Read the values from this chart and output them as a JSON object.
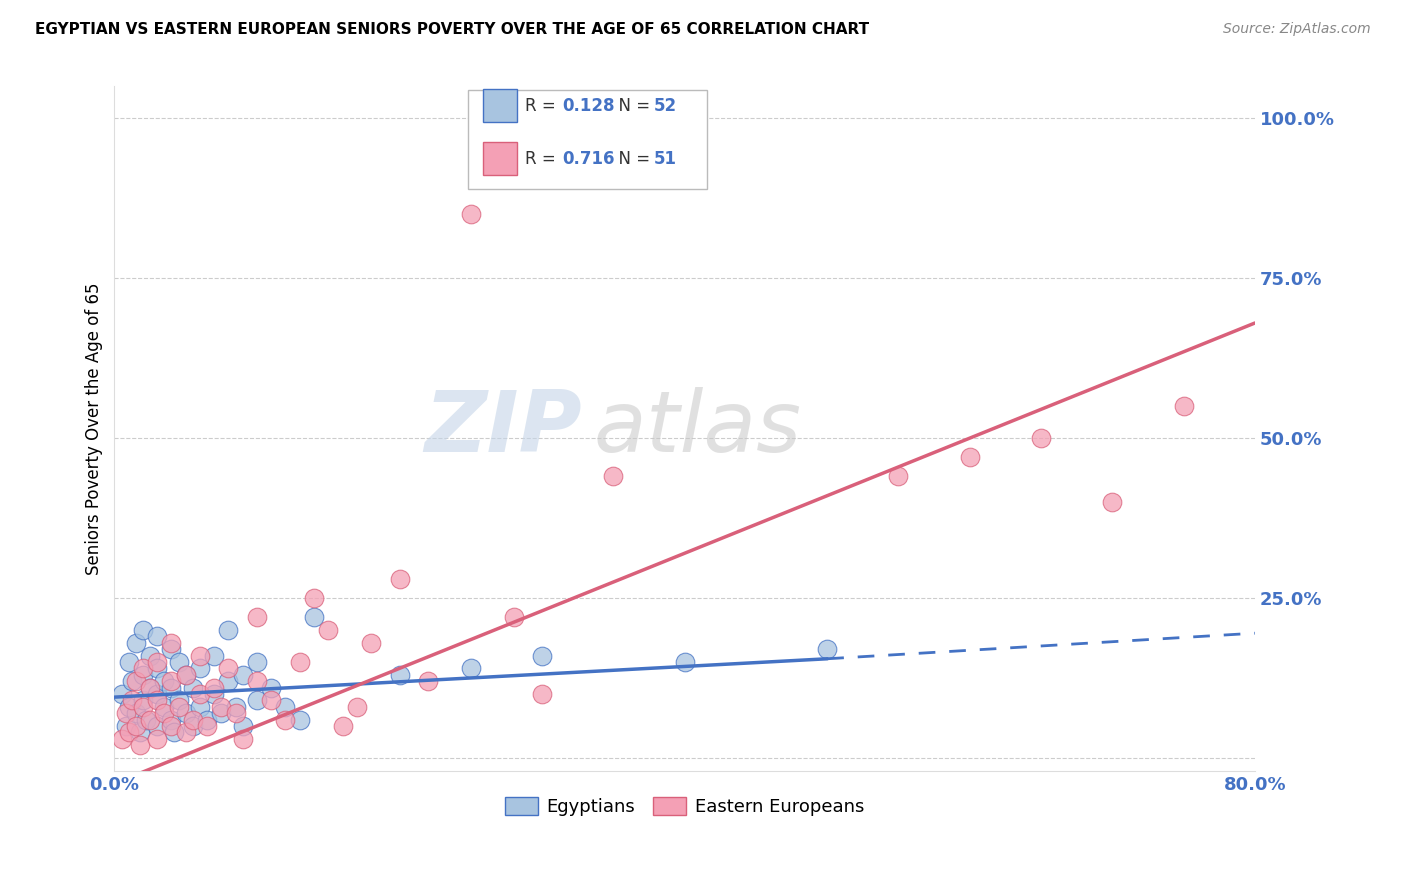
{
  "title": "EGYPTIAN VS EASTERN EUROPEAN SENIORS POVERTY OVER THE AGE OF 65 CORRELATION CHART",
  "source": "Source: ZipAtlas.com",
  "ylabel_text": "Seniors Poverty Over the Age of 65",
  "x_ticks": [
    0.0,
    0.2,
    0.4,
    0.6,
    0.8
  ],
  "y_ticks": [
    0.0,
    0.25,
    0.5,
    0.75,
    1.0
  ],
  "xlim": [
    0.0,
    0.8
  ],
  "ylim": [
    -0.02,
    1.05
  ],
  "r_egyptian": "0.128",
  "n_egyptian": "52",
  "r_eastern": "0.716",
  "n_eastern": "51",
  "color_egyptian": "#a8c4e0",
  "color_eastern": "#f4a0b5",
  "color_trend_egyptian": "#4472c4",
  "color_trend_eastern": "#d9607a",
  "watermark_zip": "ZIP",
  "watermark_atlas": "atlas",
  "legend_label_egyptian": "Egyptians",
  "legend_label_eastern": "Eastern Europeans",
  "eg_trend_x0": 0.0,
  "eg_trend_y0": 0.095,
  "eg_trend_x1": 0.5,
  "eg_trend_y1": 0.155,
  "eg_trend_dash_x1": 0.8,
  "eg_trend_dash_y1": 0.195,
  "ea_trend_x0": 0.0,
  "ea_trend_y0": -0.04,
  "ea_trend_x1": 0.8,
  "ea_trend_y1": 0.68,
  "egyptian_x": [
    0.005,
    0.008,
    0.01,
    0.01,
    0.012,
    0.015,
    0.015,
    0.018,
    0.02,
    0.02,
    0.02,
    0.022,
    0.025,
    0.025,
    0.03,
    0.03,
    0.03,
    0.03,
    0.035,
    0.035,
    0.04,
    0.04,
    0.04,
    0.042,
    0.045,
    0.045,
    0.05,
    0.05,
    0.055,
    0.055,
    0.06,
    0.06,
    0.065,
    0.07,
    0.07,
    0.075,
    0.08,
    0.08,
    0.085,
    0.09,
    0.09,
    0.1,
    0.1,
    0.11,
    0.12,
    0.13,
    0.14,
    0.2,
    0.25,
    0.3,
    0.4,
    0.5
  ],
  "egyptian_y": [
    0.1,
    0.05,
    0.08,
    0.15,
    0.12,
    0.07,
    0.18,
    0.04,
    0.09,
    0.13,
    0.2,
    0.06,
    0.11,
    0.16,
    0.05,
    0.1,
    0.14,
    0.19,
    0.08,
    0.12,
    0.06,
    0.11,
    0.17,
    0.04,
    0.09,
    0.15,
    0.07,
    0.13,
    0.05,
    0.11,
    0.08,
    0.14,
    0.06,
    0.1,
    0.16,
    0.07,
    0.12,
    0.2,
    0.08,
    0.05,
    0.13,
    0.09,
    0.15,
    0.11,
    0.08,
    0.06,
    0.22,
    0.13,
    0.14,
    0.16,
    0.15,
    0.17
  ],
  "eastern_x": [
    0.005,
    0.008,
    0.01,
    0.012,
    0.015,
    0.015,
    0.018,
    0.02,
    0.02,
    0.025,
    0.025,
    0.03,
    0.03,
    0.03,
    0.035,
    0.04,
    0.04,
    0.04,
    0.045,
    0.05,
    0.05,
    0.055,
    0.06,
    0.06,
    0.065,
    0.07,
    0.075,
    0.08,
    0.085,
    0.09,
    0.1,
    0.1,
    0.11,
    0.12,
    0.13,
    0.14,
    0.15,
    0.16,
    0.17,
    0.18,
    0.2,
    0.22,
    0.25,
    0.28,
    0.3,
    0.35,
    0.55,
    0.6,
    0.65,
    0.7,
    0.75
  ],
  "eastern_y": [
    0.03,
    0.07,
    0.04,
    0.09,
    0.05,
    0.12,
    0.02,
    0.08,
    0.14,
    0.06,
    0.11,
    0.03,
    0.09,
    0.15,
    0.07,
    0.05,
    0.12,
    0.18,
    0.08,
    0.04,
    0.13,
    0.06,
    0.1,
    0.16,
    0.05,
    0.11,
    0.08,
    0.14,
    0.07,
    0.03,
    0.12,
    0.22,
    0.09,
    0.06,
    0.15,
    0.25,
    0.2,
    0.05,
    0.08,
    0.18,
    0.28,
    0.12,
    0.85,
    0.22,
    0.1,
    0.44,
    0.44,
    0.47,
    0.5,
    0.4,
    0.55
  ]
}
